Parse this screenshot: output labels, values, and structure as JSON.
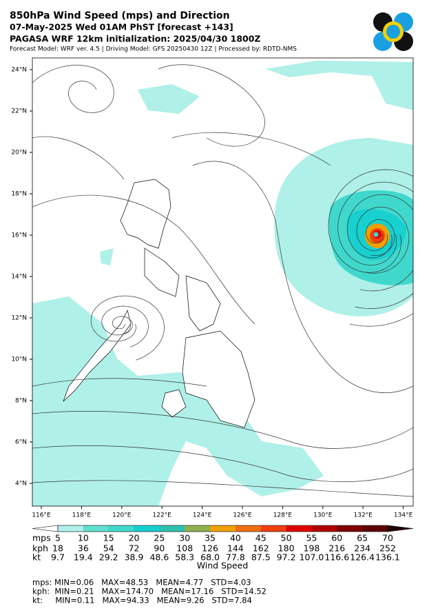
{
  "header": {
    "title": "850hPa Wind Speed (mps) and Direction",
    "valid": "07-May-2025 Wed 01AM PhST [forecast +143]",
    "init": "PAGASA WRF 12km initialization: 2025/04/30 1800Z",
    "info": "Forecast Model: WRF ver. 4.5 | Driving Model: GFS 20250430 12Z | Processed by: RDTD-NMS"
  },
  "map": {
    "lat_labels": [
      "24°N",
      "22°N",
      "20°N",
      "18°N",
      "16°N",
      "14°N",
      "12°N",
      "10°N",
      "8°N",
      "6°N",
      "4°N"
    ],
    "lon_labels": [
      "116°E",
      "118°E",
      "120°E",
      "122°E",
      "124°E",
      "126°E",
      "128°E",
      "130°E",
      "132°E",
      "134°E"
    ]
  },
  "colorbar": {
    "title": "Wind Speed",
    "colors": [
      "#ffffff",
      "#b0f0e8",
      "#60e0d0",
      "#40d8cc",
      "#18d0d0",
      "#30c0b0",
      "#90b050",
      "#f0a000",
      "#f07010",
      "#f04010",
      "#e00000",
      "#b00000",
      "#800000",
      "#600000",
      "#200000"
    ],
    "rows": [
      {
        "unit": "mps",
        "labels": [
          "5",
          "10",
          "15",
          "20",
          "25",
          "30",
          "35",
          "40",
          "45",
          "50",
          "55",
          "60",
          "65",
          "70"
        ]
      },
      {
        "unit": "kph",
        "labels": [
          "18",
          "36",
          "54",
          "72",
          "90",
          "108",
          "126",
          "144",
          "162",
          "180",
          "198",
          "216",
          "234",
          "252"
        ]
      },
      {
        "unit": "kt",
        "labels": [
          "9.7",
          "19.4",
          "29.2",
          "38.9",
          "48.6",
          "58.3",
          "68.0",
          "77.8",
          "87.5",
          "97.2",
          "107.0",
          "116.6",
          "126.4",
          "136.1"
        ]
      }
    ]
  },
  "stats": [
    "mps: MIN=0.06   MAX=48.53   MEAN=4.77   STD=4.03",
    "kph:  MIN=0.21   MAX=174.70   MEAN=17.16   STD=14.52",
    "kt:     MIN=0.11   MAX=94.33   MEAN=9.26   STD=7.84"
  ]
}
